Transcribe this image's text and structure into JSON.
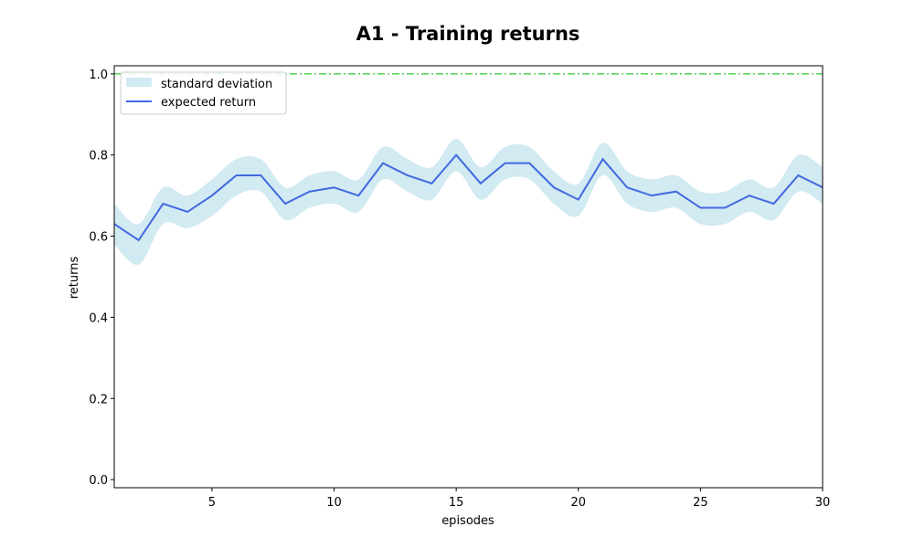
{
  "chart_data": {
    "type": "line",
    "title": "A1 - Training returns",
    "xlabel": "episodes",
    "ylabel": "returns",
    "xlim": [
      1,
      30
    ],
    "ylim": [
      -0.02,
      1.02
    ],
    "xticks": [
      5,
      10,
      15,
      20,
      25,
      30
    ],
    "yticks": [
      0.0,
      0.2,
      0.4,
      0.6,
      0.8,
      1.0
    ],
    "xtick_labels": [
      "5",
      "10",
      "15",
      "20",
      "25",
      "30"
    ],
    "ytick_labels": [
      "0.0",
      "0.2",
      "0.4",
      "0.6",
      "0.8",
      "1.0"
    ],
    "grid": false,
    "legend_position": "top-left",
    "x": [
      1,
      2,
      3,
      4,
      5,
      6,
      7,
      8,
      9,
      10,
      11,
      12,
      13,
      14,
      15,
      16,
      17,
      18,
      19,
      20,
      21,
      22,
      23,
      24,
      25,
      26,
      27,
      28,
      29,
      30
    ],
    "series": [
      {
        "name": "expected return",
        "color": "#4169e1",
        "values": [
          0.63,
          0.59,
          0.68,
          0.66,
          0.7,
          0.75,
          0.75,
          0.68,
          0.71,
          0.72,
          0.7,
          0.78,
          0.75,
          0.73,
          0.8,
          0.73,
          0.78,
          0.78,
          0.72,
          0.69,
          0.79,
          0.72,
          0.7,
          0.71,
          0.67,
          0.67,
          0.7,
          0.68,
          0.75,
          0.72
        ]
      }
    ],
    "band": {
      "name": "standard deviation",
      "color": "#add8e6",
      "upper": [
        0.68,
        0.63,
        0.72,
        0.7,
        0.74,
        0.79,
        0.79,
        0.72,
        0.75,
        0.76,
        0.74,
        0.82,
        0.79,
        0.77,
        0.84,
        0.77,
        0.82,
        0.82,
        0.76,
        0.73,
        0.83,
        0.76,
        0.74,
        0.75,
        0.71,
        0.71,
        0.74,
        0.72,
        0.8,
        0.77
      ],
      "lower": [
        0.58,
        0.53,
        0.63,
        0.62,
        0.65,
        0.7,
        0.71,
        0.64,
        0.67,
        0.68,
        0.66,
        0.74,
        0.71,
        0.69,
        0.76,
        0.69,
        0.74,
        0.74,
        0.68,
        0.65,
        0.75,
        0.68,
        0.66,
        0.67,
        0.63,
        0.63,
        0.66,
        0.64,
        0.71,
        0.68
      ]
    },
    "reference_line": {
      "value": 1.0,
      "color": "#32c832",
      "style": "dash-dot"
    }
  }
}
